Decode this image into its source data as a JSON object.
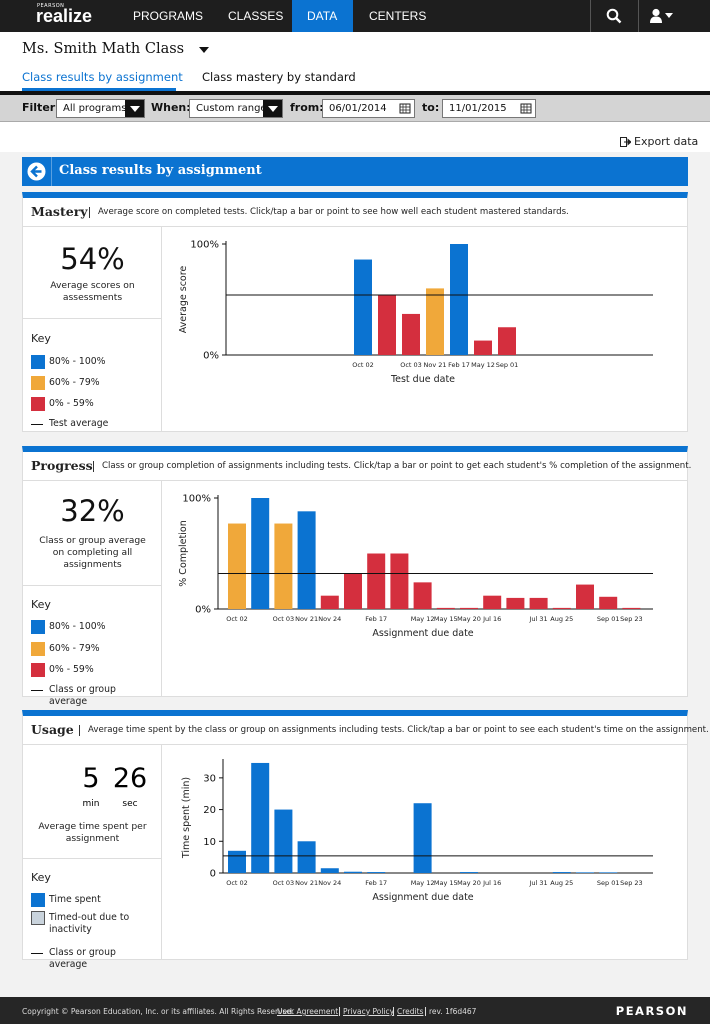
{
  "nav": {
    "brand_small": "PEARSON",
    "brand": "realize",
    "items": [
      "PROGRAMS",
      "CLASSES",
      "DATA",
      "CENTERS"
    ]
  },
  "header": {
    "class_name": "Ms. Smith Math Class",
    "tabs": [
      "Class results by assignment",
      "Class mastery by standard"
    ]
  },
  "filter": {
    "filter_label": "Filter:",
    "program": "All programs",
    "when_label": "When:",
    "range": "Custom range",
    "from_label": "from:",
    "from": "06/01/2014",
    "to_label": "to:",
    "to": "11/01/2015"
  },
  "export": "Export data",
  "section_title": "Class results by assignment",
  "panels": [
    {
      "title": "Mastery",
      "description": "Average score on completed tests. Click/tap a bar or point to see how well each student mastered standards.",
      "stat": "54%",
      "caption": "Average scores on assessments",
      "key_title": "Key",
      "key": [
        {
          "label": "80% - 100%",
          "color": "#0b73d1"
        },
        {
          "label": "60% - 79%",
          "color": "#f0a83a"
        },
        {
          "label": "0% - 59%",
          "color": "#d42f3e"
        },
        {
          "label": "Test average"
        }
      ]
    },
    {
      "title": "Progress",
      "description": "Class or group completion of assignments including tests. Click/tap a bar or point to get each student's % completion of the assignment.",
      "stat": "32%",
      "caption": "Class or group average on completing all assignments",
      "key_title": "Key",
      "key": [
        {
          "label": "80% - 100%",
          "color": "#0b73d1"
        },
        {
          "label": "60% - 79%",
          "color": "#f0a83a"
        },
        {
          "label": "0% - 59%",
          "color": "#d42f3e"
        },
        {
          "label": "Class or group average"
        }
      ]
    },
    {
      "title": "Usage",
      "description": "Average time spent by the class or group on assignments including tests. Click/tap a bar or point to see each student's time on the assignment.",
      "stat": {
        "min_value": "5",
        "min_unit": "min",
        "sec_value": "26",
        "sec_unit": "sec"
      },
      "caption": "Average time spent per assignment",
      "key_title": "Key",
      "key": [
        {
          "label": "Time spent",
          "color": "#0b73d1"
        },
        {
          "label": "Timed-out due to inactivity",
          "color": "#c9d3dc"
        },
        {
          "label": "Class or group average"
        }
      ]
    }
  ],
  "chart_data": [
    {
      "type": "bar",
      "y_label": "Average score",
      "x_label": "Test due date",
      "categories": [
        "Oct 02",
        null,
        "Oct 03",
        "Nov 21",
        "Feb 17",
        "May 12",
        "Sep 01"
      ],
      "values": [
        86,
        54,
        37,
        60,
        100,
        13,
        25
      ],
      "colors": [
        "#0b73d1",
        "#d42f3e",
        "#d42f3e",
        "#f0a83a",
        "#0b73d1",
        "#d42f3e",
        "#d42f3e"
      ],
      "average": 54,
      "ylim": [
        0,
        100
      ],
      "yticks": [
        {
          "value": 0,
          "label": "0%"
        },
        {
          "value": 100,
          "label": "100%"
        }
      ]
    },
    {
      "type": "bar",
      "y_label": "% Completion",
      "x_label": "Assignment due date",
      "categories": [
        "Oct 02",
        null,
        "Oct 03",
        "Nov 21",
        "Nov 24",
        null,
        "Feb 17",
        null,
        "May 12",
        "May 15",
        "May 20",
        "Jul 16",
        null,
        "Jul 31",
        "Aug 25",
        null,
        "Sep 01",
        "Sep 23"
      ],
      "values": [
        77,
        100,
        77,
        88,
        12,
        32,
        50,
        50,
        24,
        1,
        1,
        12,
        10,
        10,
        1,
        22,
        11,
        1
      ],
      "colors": [
        "#f0a83a",
        "#0b73d1",
        "#f0a83a",
        "#0b73d1",
        "#d42f3e",
        "#d42f3e",
        "#d42f3e",
        "#d42f3e",
        "#d42f3e",
        "#d42f3e",
        "#d42f3e",
        "#d42f3e",
        "#d42f3e",
        "#d42f3e",
        "#d42f3e",
        "#d42f3e",
        "#d42f3e",
        "#d42f3e"
      ],
      "average": 32,
      "ylim": [
        0,
        100
      ],
      "yticks": [
        {
          "value": 0,
          "label": "0%"
        },
        {
          "value": 100,
          "label": "100%"
        }
      ]
    },
    {
      "type": "bar",
      "y_label": "Time spent (min)",
      "x_label": "Assignment due date",
      "categories": [
        "Oct 02",
        null,
        "Oct 03",
        "Nov 21",
        "Nov 24",
        null,
        "Feb 17",
        null,
        "May 12",
        "May 15",
        "May 20",
        "Jul 16",
        null,
        "Jul 31",
        "Aug 25",
        null,
        "Sep 01",
        "Sep 23"
      ],
      "values": [
        7,
        34.7,
        20,
        10,
        1.5,
        0.4,
        0.3,
        0,
        22,
        0,
        0.3,
        0,
        0,
        0,
        0.3,
        0.2,
        0.2,
        0
      ],
      "color": "#0b73d1",
      "average": 5.4,
      "ylim": [
        0,
        35
      ],
      "yticks": [
        0,
        10,
        20,
        30
      ]
    }
  ],
  "footer": {
    "copyright": "Copyright © Pearson Education, Inc. or its affiliates. All Rights Reserved.",
    "links": [
      "User Agreement",
      "Privacy Policy",
      "Credits"
    ],
    "rev": "rev. 1f6d467",
    "brand": "PEARSON"
  }
}
